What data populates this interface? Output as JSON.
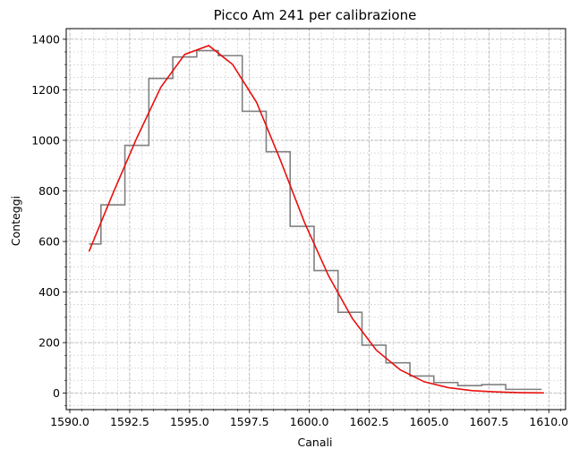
{
  "chart_data": {
    "type": "line",
    "title": "Picco Am 241 per calibrazione",
    "xlabel": "Canali",
    "ylabel": "Conteggi",
    "xlim": [
      1589.85,
      1610.7
    ],
    "ylim": [
      -65,
      1442
    ],
    "xticks": [
      1590.0,
      1592.5,
      1595.0,
      1597.5,
      1600.0,
      1602.5,
      1605.0,
      1607.5,
      1610.0
    ],
    "xtick_labels": [
      "1590.0",
      "1592.5",
      "1595.0",
      "1597.5",
      "1600.0",
      "1602.5",
      "1605.0",
      "1607.5",
      "1610.0"
    ],
    "yticks": [
      0,
      200,
      400,
      600,
      800,
      1000,
      1200,
      1400
    ],
    "ytick_labels": [
      "0",
      "200",
      "400",
      "600",
      "800",
      "1000",
      "1200",
      "1400"
    ],
    "grid": true,
    "minor_grid": true,
    "series": [
      {
        "kind": "step-histogram",
        "color": "#808080",
        "x": [
          1590.8,
          1591.3,
          1592.3,
          1593.3,
          1594.3,
          1595.3,
          1596.2,
          1597.2,
          1598.2,
          1599.2,
          1600.2,
          1601.2,
          1602.2,
          1603.2,
          1604.2,
          1605.2,
          1606.2,
          1607.2,
          1608.2,
          1609.7
        ],
        "y": [
          590,
          745,
          980,
          1245,
          1330,
          1355,
          1335,
          1115,
          955,
          660,
          485,
          320,
          190,
          120,
          68,
          42,
          30,
          34,
          15,
          15
        ]
      },
      {
        "kind": "fit-line",
        "color": "#e8100e",
        "x": [
          1590.8,
          1591.8,
          1592.8,
          1593.8,
          1594.8,
          1595.8,
          1596.8,
          1597.8,
          1598.8,
          1599.8,
          1600.8,
          1601.8,
          1602.8,
          1603.8,
          1604.8,
          1605.8,
          1606.8,
          1607.8,
          1608.8,
          1609.8
        ],
        "y": [
          560,
          790,
          1010,
          1210,
          1340,
          1375,
          1300,
          1150,
          920,
          675,
          465,
          295,
          170,
          92,
          45,
          22,
          10,
          5,
          2,
          1
        ]
      }
    ]
  }
}
